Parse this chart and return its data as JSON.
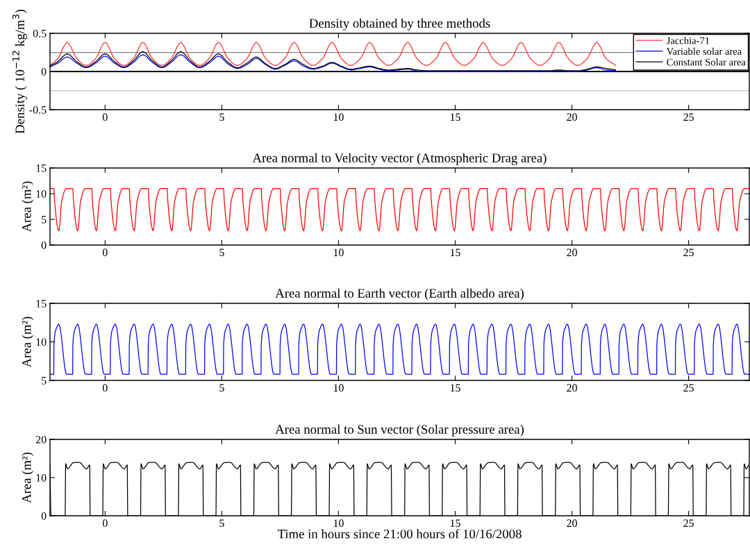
{
  "chart_data": [
    {
      "type": "line",
      "title": "Density obtained by three methods",
      "ylabel": "Density ( 10$^{−12}$ kg/m$^{3}$)",
      "xlim": [
        -2.36,
        27.6
      ],
      "ylim": [
        -0.5,
        0.5
      ],
      "xticks": [
        0,
        5,
        10,
        15,
        20,
        25
      ],
      "yticks": [
        -0.5,
        0,
        0.5
      ],
      "legend": "top right",
      "ref_lines": [
        {
          "axis": "y",
          "value": 0.25,
          "color": "#808080"
        },
        {
          "axis": "y",
          "value": -0.25,
          "color": "#c0c0c0"
        },
        {
          "axis": "y",
          "value": 0,
          "color": "#000000"
        }
      ],
      "x": [
        -2.36,
        -2.025,
        -1.62,
        -1.215,
        -0.81,
        -0.405,
        0,
        0.405,
        0.81,
        1.215,
        1.62,
        2.025,
        2.43,
        2.835,
        3.24,
        3.645,
        4.05,
        4.455,
        4.86,
        5.265,
        5.67,
        6.075,
        6.48,
        6.885,
        7.29,
        7.695,
        8.1,
        8.505,
        8.91,
        9.315,
        9.72,
        10.125,
        10.53,
        10.935,
        11.34,
        11.745,
        12.15,
        12.555,
        12.96,
        13.365,
        13.77,
        14.175,
        14.58,
        14.985,
        15.39,
        15.795,
        16.2,
        16.605,
        17.01,
        17.415,
        17.82,
        18.225,
        18.63,
        19.035,
        19.44,
        19.845,
        20.25,
        20.655,
        21.06,
        21.465,
        21.87
      ],
      "series": [
        {
          "name": "Jacchia-71",
          "color": "#ff3030",
          "values": [
            0.08,
            0.17,
            0.38,
            0.17,
            0.08,
            0.17,
            0.38,
            0.17,
            0.08,
            0.17,
            0.38,
            0.17,
            0.08,
            0.17,
            0.38,
            0.17,
            0.08,
            0.17,
            0.38,
            0.17,
            0.08,
            0.17,
            0.38,
            0.17,
            0.08,
            0.17,
            0.38,
            0.17,
            0.08,
            0.17,
            0.38,
            0.17,
            0.08,
            0.17,
            0.38,
            0.17,
            0.08,
            0.17,
            0.38,
            0.17,
            0.08,
            0.17,
            0.38,
            0.17,
            0.08,
            0.17,
            0.38,
            0.17,
            0.08,
            0.17,
            0.38,
            0.17,
            0.08,
            0.17,
            0.38,
            0.17,
            0.08,
            0.17,
            0.38,
            0.17,
            0.08
          ]
        },
        {
          "name": "Variable solar area",
          "color": "#0000ff",
          "values": [
            0.06,
            0.11,
            0.19,
            0.11,
            0.05,
            0.11,
            0.2,
            0.11,
            0.05,
            0.12,
            0.22,
            0.12,
            0.05,
            0.12,
            0.22,
            0.12,
            0.05,
            0.11,
            0.2,
            0.1,
            0.04,
            0.09,
            0.17,
            0.09,
            0.03,
            0.08,
            0.14,
            0.07,
            0.03,
            0.06,
            0.11,
            0.06,
            0.02,
            0.04,
            0.06,
            0.03,
            0.01,
            0.02,
            0.03,
            0.01,
            0,
            0,
            0,
            0,
            0,
            0,
            0,
            0,
            0,
            0,
            0,
            0,
            0,
            0,
            0.01,
            0,
            0,
            0.02,
            0.05,
            0.02,
            0.01
          ]
        },
        {
          "name": "Constant Solar area",
          "color": "#000000",
          "values": [
            0.07,
            0.13,
            0.23,
            0.13,
            0.06,
            0.13,
            0.23,
            0.13,
            0.06,
            0.14,
            0.26,
            0.14,
            0.06,
            0.14,
            0.26,
            0.14,
            0.06,
            0.13,
            0.23,
            0.12,
            0.05,
            0.11,
            0.19,
            0.1,
            0.04,
            0.09,
            0.16,
            0.09,
            0.04,
            0.07,
            0.12,
            0.07,
            0.03,
            0.05,
            0.07,
            0.04,
            0.02,
            0.03,
            0.04,
            0.02,
            0.01,
            0.01,
            0.01,
            0.01,
            0.01,
            0.01,
            0.01,
            0.01,
            0.01,
            0.01,
            0.01,
            0.01,
            0.01,
            0.01,
            0.02,
            0.01,
            0.01,
            0.03,
            0.06,
            0.04,
            0.02
          ]
        }
      ]
    },
    {
      "type": "line",
      "title": "Area normal to Velocity vector (Atmospheric Drag area)",
      "ylabel": "Area (m²)",
      "xlim": [
        -2.36,
        27.6
      ],
      "ylim": [
        0,
        15
      ],
      "xticks": [
        0,
        5,
        10,
        15,
        20,
        25
      ],
      "yticks": [
        0,
        5,
        10,
        15
      ],
      "x": [
        -2.36,
        -2.19,
        -2.17,
        -1.98,
        -1.86,
        -1.66,
        -1.38,
        -1.36,
        -1.17,
        -1.05,
        -0.85,
        -0.57,
        -0.55,
        -0.37,
        -0.25,
        -0.05,
        0.23,
        0.25,
        0.44,
        0.56,
        0.76,
        1.04,
        1.06,
        1.25,
        1.37,
        1.57,
        1.85,
        1.87,
        2.06,
        2.18,
        2.38,
        2.66,
        2.68,
        2.86,
        2.98,
        3.18,
        3.46,
        3.48,
        3.67,
        3.79,
        3.99,
        4.27,
        4.29,
        4.48,
        4.6,
        4.8,
        5.08,
        5.1,
        5.28,
        5.4,
        5.6,
        5.88,
        5.9,
        6.09,
        6.21,
        6.41,
        6.69,
        6.71,
        6.9,
        7.02,
        7.22,
        7.5,
        7.52,
        7.7,
        7.82,
        8.02,
        8.3,
        8.32,
        8.51,
        8.63,
        8.83,
        9.11,
        9.13,
        9.32,
        9.44,
        9.64,
        9.92,
        9.94,
        10.13,
        10.25,
        10.45,
        10.73,
        10.75,
        10.93,
        11.05,
        11.25,
        11.53,
        11.55,
        11.74,
        11.86,
        12.06,
        12.34,
        12.36,
        12.55,
        12.67,
        12.87,
        13.15,
        13.17,
        13.35,
        13.47,
        13.67,
        13.95,
        13.97,
        14.16,
        14.28,
        14.48,
        14.76,
        14.78,
        14.97,
        15.09,
        15.29,
        15.57,
        15.59,
        15.77,
        15.89,
        16.09,
        16.37,
        16.39,
        16.58,
        16.7,
        16.9,
        17.18,
        17.2,
        17.39,
        17.51,
        17.71,
        17.99,
        18.01,
        18.2,
        18.32,
        18.52,
        18.8,
        18.82,
        19.0,
        19.12,
        19.32,
        19.6,
        19.62,
        19.81,
        19.93,
        20.13,
        20.41,
        20.43,
        20.62,
        20.74,
        20.94,
        21.22,
        21.24,
        21.42,
        21.54,
        21.74,
        22.02,
        22.04,
        22.23,
        22.35,
        22.55,
        22.83,
        22.85,
        23.04,
        23.16,
        23.36,
        23.64,
        23.66,
        23.84,
        23.96,
        24.16,
        24.44,
        24.46,
        24.65,
        24.77,
        24.97,
        25.25,
        25.27,
        25.46,
        25.58,
        25.78,
        26.06,
        26.08,
        26.27,
        26.39,
        26.59,
        26.87,
        26.89,
        27.07,
        27.19,
        27.39,
        27.6
      ],
      "series": [
        {
          "color": "#ff0000",
          "values": [
            11,
            11,
            9,
            2.8,
            8.5,
            11,
            11,
            9,
            2.8,
            8.5,
            11,
            11,
            9,
            2.8,
            8.5,
            11,
            11,
            9,
            2.8,
            8.5,
            11,
            11,
            9,
            2.8,
            8.5,
            11,
            11,
            9,
            2.8,
            8.5,
            11,
            11,
            9,
            2.8,
            8.5,
            11,
            11,
            9,
            2.8,
            8.5,
            11,
            11,
            9,
            2.8,
            8.5,
            11,
            11,
            9,
            2.8,
            8.5,
            11,
            11,
            9,
            2.8,
            8.5,
            11,
            11,
            9,
            2.8,
            8.5,
            11,
            11,
            9,
            2.8,
            8.5,
            11,
            11,
            9,
            2.8,
            8.5,
            11,
            11,
            9,
            2.8,
            8.5,
            11,
            11,
            9,
            2.8,
            8.5,
            11,
            11,
            9,
            2.8,
            8.5,
            11,
            11,
            9,
            2.8,
            8.5,
            11,
            11,
            9,
            2.8,
            8.5,
            11,
            11,
            9,
            2.8,
            8.5,
            11,
            11,
            9,
            2.8,
            8.5,
            11,
            11,
            9,
            2.8,
            8.5,
            11,
            11,
            9,
            2.8,
            8.5,
            11,
            11,
            9,
            2.8,
            8.5,
            11,
            11,
            9,
            2.8,
            8.5,
            11,
            11,
            9,
            2.8,
            8.5,
            11,
            11,
            9,
            2.8,
            8.5,
            11,
            11,
            9,
            2.8,
            8.5,
            11,
            11,
            9,
            2.8,
            8.5,
            11,
            11,
            9,
            2.8,
            8.5,
            11,
            11,
            9,
            2.8,
            8.5,
            11,
            11,
            9,
            2.8,
            8.5,
            11,
            11,
            9,
            2.8,
            8.5,
            11,
            11,
            9,
            2.8,
            8.5,
            11,
            11,
            9,
            2.8,
            8.5,
            11,
            11,
            9,
            2.8,
            8.5,
            11,
            11,
            9,
            2.8,
            8.5,
            11,
            11
          ]
        }
      ]
    },
    {
      "type": "line",
      "title": "Area normal to Earth vector (Earth albedo area)",
      "ylabel": "Area (m²)",
      "xlim": [
        -2.36,
        27.6
      ],
      "ylim": [
        5,
        15
      ],
      "xticks": [
        0,
        5,
        10,
        15,
        20,
        25
      ],
      "yticks": [
        5,
        10,
        15
      ],
      "x": [
        -2.36,
        -2.2,
        -2.19,
        -2.08,
        -1.98,
        -1.65,
        -1.39,
        -1.38,
        -1.27,
        -1.17,
        -0.84,
        -0.58,
        -0.57,
        -0.46,
        -0.37,
        -0.04,
        0.22,
        0.23,
        0.34,
        0.44,
        0.77,
        1.03,
        1.04,
        1.15,
        1.25,
        1.58,
        1.84,
        1.85,
        1.96,
        2.06,
        2.39,
        2.65,
        2.66,
        2.77,
        2.86,
        3.19,
        3.45,
        3.46,
        3.57,
        3.67,
        4.0,
        4.26,
        4.27,
        4.38,
        4.48,
        4.81,
        5.07,
        5.08,
        5.19,
        5.28,
        5.61,
        5.87,
        5.88,
        5.99,
        6.09,
        6.42,
        6.68,
        6.69,
        6.8,
        6.9,
        7.23,
        7.49,
        7.5,
        7.61,
        7.7,
        8.03,
        8.29,
        8.3,
        8.41,
        8.51,
        8.84,
        9.1,
        9.11,
        9.22,
        9.32,
        9.65,
        9.91,
        9.92,
        10.03,
        10.13,
        10.46,
        10.72,
        10.73,
        10.84,
        10.93,
        11.26,
        11.52,
        11.53,
        11.64,
        11.74,
        12.07,
        12.33,
        12.34,
        12.45,
        12.55,
        12.88,
        13.14,
        13.15,
        13.26,
        13.35,
        13.68,
        13.94,
        13.95,
        14.06,
        14.16,
        14.49,
        14.75,
        14.76,
        14.87,
        14.97,
        15.3,
        15.56,
        15.57,
        15.68,
        15.77,
        16.1,
        16.36,
        16.37,
        16.48,
        16.58,
        16.91,
        17.17,
        17.18,
        17.29,
        17.39,
        17.72,
        17.98,
        17.99,
        18.1,
        18.2,
        18.53,
        18.79,
        18.8,
        18.91,
        19.0,
        19.33,
        19.59,
        19.6,
        19.71,
        19.81,
        20.14,
        20.4,
        20.41,
        20.52,
        20.62,
        20.95,
        21.21,
        21.22,
        21.33,
        21.42,
        21.75,
        22.01,
        22.02,
        22.13,
        22.23,
        22.56,
        22.82,
        22.83,
        22.94,
        23.04,
        23.37,
        23.63,
        23.64,
        23.75,
        23.84,
        24.17,
        24.43,
        24.44,
        24.55,
        24.65,
        24.98,
        25.24,
        25.25,
        25.36,
        25.46,
        25.79,
        26.05,
        26.06,
        26.17,
        26.27,
        26.6,
        26.86,
        26.87,
        26.98,
        27.07,
        27.4,
        27.6
      ],
      "series": [
        {
          "color": "#0000ff",
          "values": [
            5.8,
            5.8,
            9.7,
            11.8,
            12.3,
            5.8,
            5.8,
            9.7,
            11.8,
            12.3,
            5.8,
            5.8,
            9.7,
            11.8,
            12.3,
            5.8,
            5.8,
            9.7,
            11.8,
            12.3,
            5.8,
            5.8,
            9.7,
            11.8,
            12.3,
            5.8,
            5.8,
            9.7,
            11.8,
            12.3,
            5.8,
            5.8,
            9.7,
            11.8,
            12.3,
            5.8,
            5.8,
            9.7,
            11.8,
            12.3,
            5.8,
            5.8,
            9.7,
            11.8,
            12.3,
            5.8,
            5.8,
            9.7,
            11.8,
            12.3,
            5.8,
            5.8,
            9.7,
            11.8,
            12.3,
            5.8,
            5.8,
            9.7,
            11.8,
            12.3,
            5.8,
            5.8,
            9.7,
            11.8,
            12.3,
            5.8,
            5.8,
            9.7,
            11.8,
            12.3,
            5.8,
            5.8,
            9.7,
            11.8,
            12.3,
            5.8,
            5.8,
            9.7,
            11.8,
            12.3,
            5.8,
            5.8,
            9.7,
            11.8,
            12.3,
            5.8,
            5.8,
            9.7,
            11.8,
            12.3,
            5.8,
            5.8,
            9.7,
            11.8,
            12.3,
            5.8,
            5.8,
            9.7,
            11.8,
            12.3,
            5.8,
            5.8,
            9.7,
            11.8,
            12.3,
            5.8,
            5.8,
            9.7,
            11.8,
            12.3,
            5.8,
            5.8,
            9.7,
            11.8,
            12.3,
            5.8,
            5.8,
            9.7,
            11.8,
            12.3,
            5.8,
            5.8,
            9.7,
            11.8,
            12.3,
            5.8,
            5.8,
            9.7,
            11.8,
            12.3,
            5.8,
            5.8,
            9.7,
            11.8,
            12.3,
            5.8,
            5.8,
            9.7,
            11.8,
            12.3,
            5.8,
            5.8,
            9.7,
            11.8,
            12.3,
            5.8,
            5.8,
            9.7,
            11.8,
            12.3,
            5.8,
            5.8,
            9.7,
            11.8,
            12.3,
            5.8,
            5.8,
            9.7,
            11.8,
            12.3,
            5.8,
            5.8,
            9.7,
            11.8,
            12.3,
            5.8,
            5.8,
            9.7,
            11.8,
            12.3,
            5.8,
            5.8,
            9.7,
            11.8,
            12.3,
            5.8,
            5.8,
            9.7,
            11.8,
            12.3,
            5.8,
            5.8,
            9.7,
            11.8,
            12.3,
            5.8,
            5.8
          ]
        }
      ]
    },
    {
      "type": "line",
      "title": "Area normal to Sun vector (Solar pressure area)",
      "ylabel": "Area (m²)",
      "xlabel": "Time in hours since 21:00 hours of 10/16/2008",
      "xlim": [
        -2.36,
        27.6
      ],
      "ylim": [
        0,
        20
      ],
      "xticks": [
        0,
        5,
        10,
        15,
        20,
        25
      ],
      "yticks": [
        0,
        10,
        20
      ],
      "x": [
        -2.36,
        -2.32,
        -1.71,
        -1.69,
        -1.61,
        -1.36,
        -1.11,
        -0.79,
        -0.66,
        -0.64,
        -0.1,
        -0.08,
        0.0,
        0.25,
        0.5,
        0.82,
        0.95,
        0.97,
        1.52,
        1.54,
        1.62,
        1.87,
        2.12,
        2.44,
        2.57,
        2.59,
        3.14,
        3.16,
        3.24,
        3.49,
        3.74,
        4.06,
        4.19,
        4.21,
        4.75,
        4.77,
        4.85,
        5.1,
        5.35,
        5.67,
        5.8,
        5.82,
        6.37,
        6.39,
        6.47,
        6.72,
        6.97,
        7.29,
        7.42,
        7.44,
        7.98,
        8.0,
        8.08,
        8.33,
        8.58,
        8.9,
        9.03,
        9.05,
        9.6,
        9.62,
        9.7,
        9.95,
        10.2,
        10.52,
        10.65,
        10.67,
        11.21,
        11.23,
        11.31,
        11.56,
        11.81,
        12.13,
        12.26,
        12.28,
        12.83,
        12.85,
        12.93,
        13.18,
        13.43,
        13.75,
        13.88,
        13.9,
        14.44,
        14.46,
        14.54,
        14.79,
        15.04,
        15.36,
        15.49,
        15.51,
        16.06,
        16.08,
        16.16,
        16.41,
        16.66,
        16.98,
        17.11,
        17.13,
        17.67,
        17.69,
        17.77,
        18.02,
        18.27,
        18.59,
        18.72,
        18.74,
        19.29,
        19.31,
        19.39,
        19.64,
        19.89,
        20.21,
        20.34,
        20.36,
        20.9,
        20.92,
        21.0,
        21.25,
        21.5,
        21.82,
        21.95,
        21.97,
        22.52,
        22.54,
        22.62,
        22.87,
        23.12,
        23.44,
        23.57,
        23.59,
        24.13,
        24.15,
        24.23,
        24.48,
        24.73,
        25.05,
        25.18,
        25.2,
        25.75,
        25.77,
        25.85,
        26.1,
        26.35,
        26.67,
        26.8,
        26.82,
        27.36,
        27.38,
        27.46,
        27.6
      ],
      "series": [
        {
          "color": "#000000",
          "values": [
            13.3,
            0,
            0,
            13.6,
            12.3,
            13.9,
            14,
            12.3,
            13.3,
            0,
            0,
            13.6,
            12.3,
            13.9,
            14,
            12.3,
            13.3,
            0,
            0,
            13.6,
            12.3,
            13.9,
            14,
            12.3,
            13.3,
            0,
            0,
            13.6,
            12.3,
            13.9,
            14,
            12.3,
            13.3,
            0,
            0,
            13.6,
            12.3,
            13.9,
            14,
            12.3,
            13.3,
            0,
            0,
            13.6,
            12.3,
            13.9,
            14,
            12.3,
            13.3,
            0,
            0,
            13.6,
            12.3,
            13.9,
            14,
            12.3,
            13.3,
            0,
            0,
            13.6,
            12.3,
            13.9,
            14,
            12.3,
            13.3,
            0,
            0,
            13.6,
            12.3,
            13.9,
            14,
            12.3,
            13.3,
            0,
            0,
            13.6,
            12.3,
            13.9,
            14,
            12.3,
            13.3,
            0,
            0,
            13.6,
            12.3,
            13.9,
            14,
            12.3,
            13.3,
            0,
            0,
            13.6,
            12.3,
            13.9,
            14,
            12.3,
            13.3,
            0,
            0,
            13.6,
            12.3,
            13.9,
            14,
            12.3,
            13.3,
            0,
            0,
            13.6,
            12.3,
            13.9,
            14,
            12.3,
            13.3,
            0,
            0,
            13.6,
            12.3,
            13.9,
            14,
            12.3,
            13.3,
            0,
            0,
            13.6,
            12.3,
            13.9,
            14,
            12.3,
            13.3,
            0,
            0,
            13.6,
            12.3,
            13.9,
            14,
            12.3,
            13.3,
            0,
            0,
            13.6,
            12.3,
            13.9,
            14,
            12.3,
            13.3,
            0,
            0,
            13.6,
            12.3,
            13.5
          ]
        }
      ]
    }
  ]
}
